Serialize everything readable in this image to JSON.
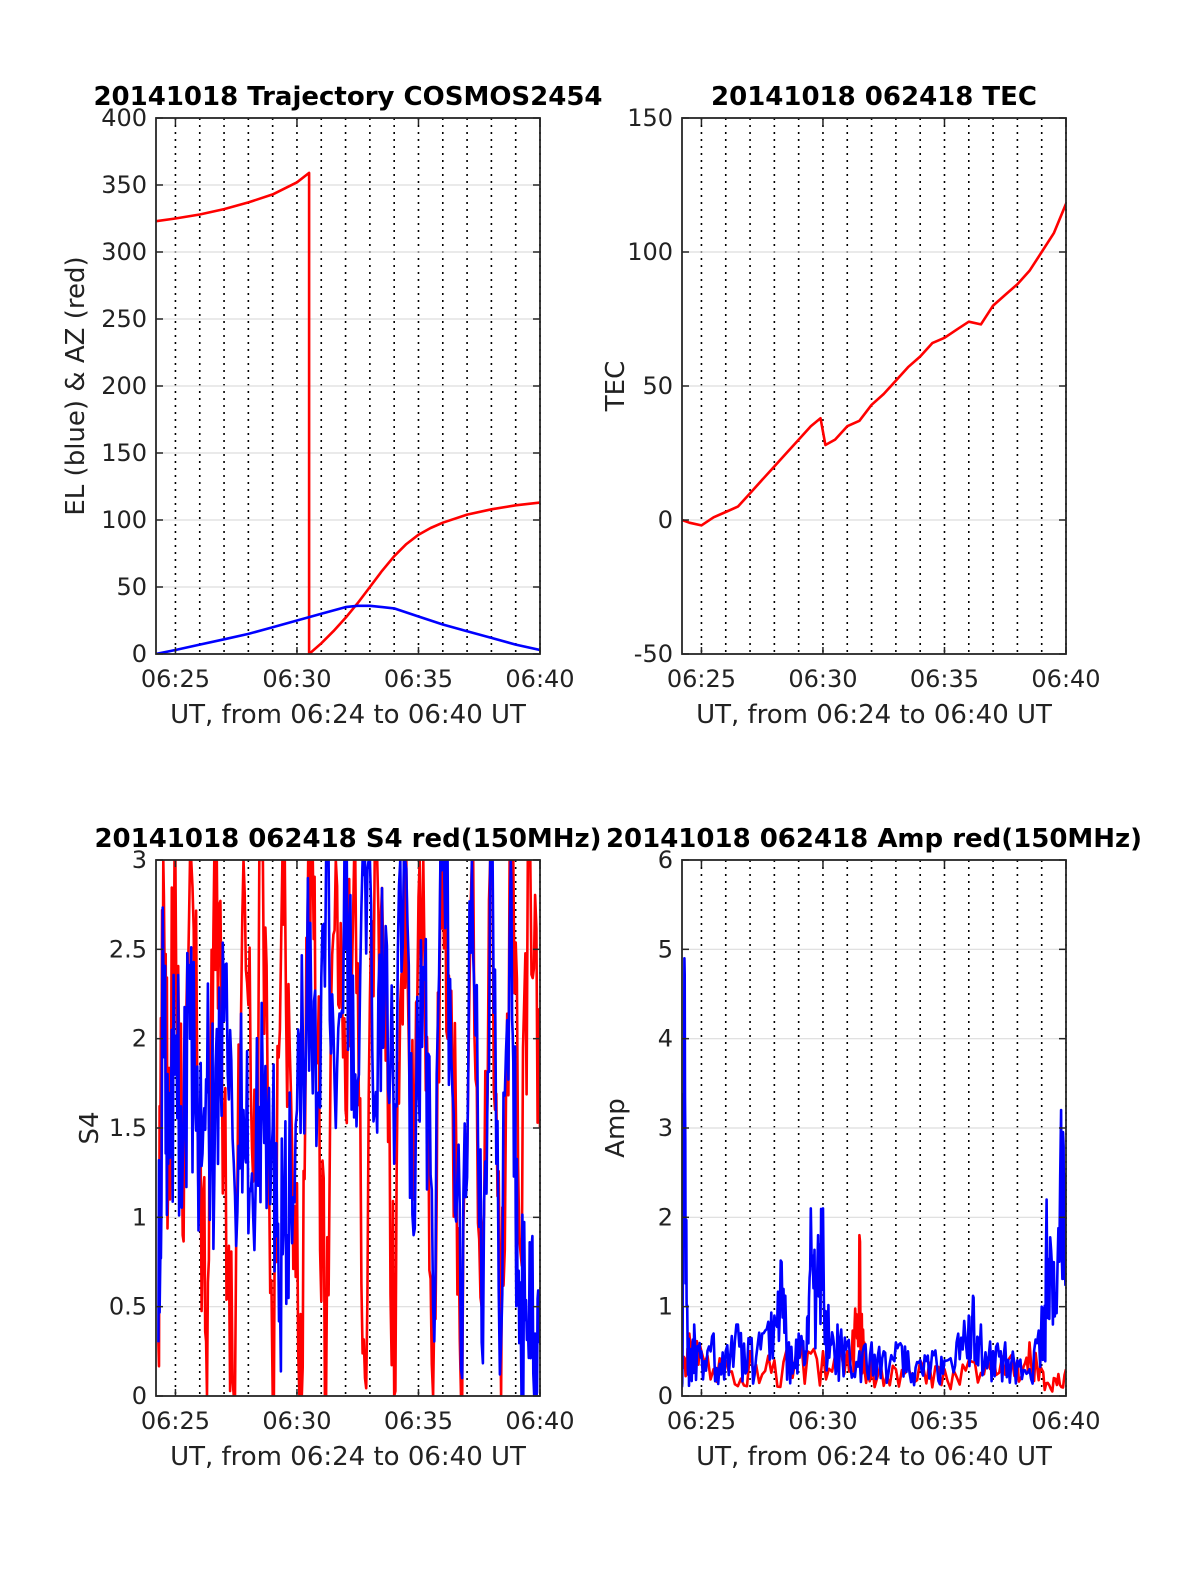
{
  "chart_data": [
    {
      "id": "trajectory",
      "type": "line",
      "title": "20141018 Trajectory COSMOS2454",
      "xlabel": "UT, from 06:24 to 06:40 UT",
      "ylabel": "EL (blue) & AZ (red)",
      "xlim": [
        24.2,
        40
      ],
      "ylim": [
        0,
        400
      ],
      "xticks": [
        25,
        30,
        35,
        40
      ],
      "xtick_labels": [
        "06:25",
        "06:30",
        "06:35",
        "06:40"
      ],
      "yticks": [
        0,
        50,
        100,
        150,
        200,
        250,
        300,
        350,
        400
      ],
      "ytick_labels": [
        "0",
        "50",
        "100",
        "150",
        "200",
        "250",
        "300",
        "350",
        "400"
      ],
      "grid": true,
      "series": [
        {
          "color": "#ff0000",
          "x": [
            24.2,
            25,
            26,
            27,
            28,
            29,
            30,
            30.5,
            30.5,
            31,
            31.5,
            32,
            32.5,
            33,
            33.5,
            34,
            34.5,
            35,
            35.5,
            36,
            37,
            38,
            39,
            40
          ],
          "y": [
            323,
            325,
            328,
            332,
            337,
            343,
            352,
            359,
            0,
            8,
            17,
            27,
            38,
            50,
            62,
            73,
            82,
            89,
            94,
            98,
            104,
            108,
            111,
            113
          ]
        },
        {
          "color": "#0000ff",
          "x": [
            24.2,
            25,
            26,
            27,
            28,
            29,
            30,
            31,
            32,
            32.5,
            33,
            34,
            35,
            36,
            37,
            38,
            39,
            40
          ],
          "y": [
            0,
            3,
            7,
            11,
            15,
            20,
            25,
            30,
            35,
            36,
            36,
            34,
            28,
            22,
            17,
            12,
            7,
            3
          ]
        }
      ]
    },
    {
      "id": "tec",
      "type": "line",
      "title": "20141018 062418 TEC",
      "xlabel": "UT, from 06:24 to 06:40 UT",
      "ylabel": "TEC",
      "xlim": [
        24.2,
        40
      ],
      "ylim": [
        -50,
        150
      ],
      "xticks": [
        25,
        30,
        35,
        40
      ],
      "xtick_labels": [
        "06:25",
        "06:30",
        "06:35",
        "06:40"
      ],
      "yticks": [
        -50,
        0,
        50,
        100,
        150
      ],
      "ytick_labels": [
        "-50",
        "0",
        "50",
        "100",
        "150"
      ],
      "grid": true,
      "series": [
        {
          "color": "#ff0000",
          "x": [
            24.2,
            24.5,
            25,
            25.5,
            26,
            26.5,
            27,
            27.5,
            28,
            28.5,
            29,
            29.5,
            29.9,
            30.1,
            30.5,
            31,
            31.5,
            32,
            32.5,
            33,
            33.5,
            34,
            34.5,
            35,
            35.5,
            36,
            36.5,
            37,
            37.5,
            38,
            38.5,
            39,
            39.5,
            40
          ],
          "y": [
            0,
            -1,
            -2,
            1,
            3,
            5,
            10,
            15,
            20,
            25,
            30,
            35,
            38,
            28,
            30,
            35,
            37,
            43,
            47,
            52,
            57,
            61,
            66,
            68,
            71,
            74,
            73,
            80,
            84,
            88,
            93,
            100,
            107,
            118
          ]
        }
      ]
    },
    {
      "id": "s4",
      "type": "line",
      "title": "20141018 062418 S4 red(150MHz)",
      "xlabel": "UT, from 06:24 to 06:40 UT",
      "ylabel": "S4",
      "xlim": [
        24.2,
        40
      ],
      "ylim": [
        0,
        3
      ],
      "xticks": [
        25,
        30,
        35,
        40
      ],
      "xtick_labels": [
        "06:25",
        "06:30",
        "06:35",
        "06:40"
      ],
      "yticks": [
        0,
        0.5,
        1,
        1.5,
        2,
        2.5,
        3
      ],
      "ytick_labels": [
        "0",
        "0.5",
        "1",
        "1.5",
        "2",
        "2.5",
        "3"
      ],
      "grid": true,
      "series": [
        {
          "color": "#ff0000",
          "x": [
            24.3,
            24.5,
            24.7,
            25,
            25.3,
            25.6,
            26,
            26.3,
            26.6,
            27,
            27.4,
            27.8,
            28.2,
            28.6,
            29,
            29.4,
            29.8,
            30.2,
            30.5,
            30.8,
            31.2,
            31.6,
            32,
            32.4,
            32.8,
            33.2,
            33.6,
            34,
            34.4,
            34.8,
            35.2,
            35.6,
            36,
            36.4,
            36.8,
            37.2,
            37.6,
            38,
            38.4,
            38.8,
            39.2,
            39.6,
            40
          ],
          "y": [
            0.3,
            3,
            1.2,
            3,
            0.9,
            3,
            1.3,
            0,
            3,
            1.5,
            0,
            3,
            1.2,
            3,
            0,
            3,
            1.4,
            0,
            3,
            2.0,
            0,
            3,
            1.6,
            3,
            0.1,
            3,
            2.4,
            0,
            3,
            1.1,
            3,
            0,
            3,
            1.8,
            0,
            3,
            0.5,
            3,
            0,
            3,
            0.8,
            3,
            1.5
          ]
        },
        {
          "color": "#0000ff",
          "x": [
            24.3,
            24.5,
            24.7,
            25,
            25.3,
            25.6,
            26,
            26.3,
            26.6,
            27,
            27.4,
            27.8,
            28.2,
            28.6,
            29,
            29.3,
            29.6,
            30,
            30.4,
            30.8,
            31.2,
            31.6,
            32,
            32.4,
            32.8,
            33.2,
            33.6,
            34,
            34.4,
            34.8,
            35.2,
            35.6,
            36,
            36.4,
            36.8,
            37.2,
            37.6,
            38,
            38.4,
            38.8,
            39,
            39.2,
            39.5,
            39.8,
            40
          ],
          "y": [
            0.3,
            2.4,
            1.3,
            1.8,
            1.3,
            2.0,
            1.4,
            1.7,
            1.2,
            2.1,
            1.3,
            1.6,
            1.0,
            1.7,
            1.5,
            0.6,
            0.9,
            1.6,
            2.2,
            1.4,
            3,
            1.5,
            2.5,
            1.8,
            3,
            1.6,
            2.2,
            1.3,
            3,
            0.9,
            2.4,
            0.5,
            3,
            1.7,
            0.1,
            3,
            0.3,
            3,
            0.3,
            3,
            1.0,
            0.5,
            0.4,
            0.35,
            0.3
          ]
        }
      ]
    },
    {
      "id": "amp",
      "type": "line",
      "title": "20141018 062418 Amp red(150MHz)",
      "xlabel": "UT, from 06:24 to 06:40 UT",
      "ylabel": "Amp",
      "xlim": [
        24.2,
        40
      ],
      "ylim": [
        0,
        6
      ],
      "xticks": [
        25,
        30,
        35,
        40
      ],
      "xtick_labels": [
        "06:25",
        "06:30",
        "06:35",
        "06:40"
      ],
      "yticks": [
        0,
        1,
        2,
        3,
        4,
        5,
        6
      ],
      "ytick_labels": [
        "0",
        "1",
        "2",
        "3",
        "4",
        "5",
        "6"
      ],
      "grid": true,
      "series": [
        {
          "color": "#ff0000",
          "x": [
            24.2,
            24.5,
            25,
            26,
            27,
            28,
            29,
            30,
            31,
            31.3,
            31.5,
            31.7,
            32,
            33,
            34,
            35,
            36,
            37,
            38,
            38.5,
            39,
            39.5,
            40
          ],
          "y": [
            0.3,
            0.7,
            0.5,
            0.4,
            0.5,
            0.4,
            0.6,
            0.5,
            0.5,
            0.8,
            1.8,
            0.6,
            0.4,
            0.3,
            0.4,
            0.3,
            0.4,
            0.5,
            0.4,
            0.6,
            0.3,
            0.2,
            0.3
          ]
        },
        {
          "color": "#0000ff",
          "x": [
            24.2,
            24.3,
            24.4,
            24.5,
            24.7,
            25,
            25.5,
            26,
            26.5,
            27,
            27.5,
            28,
            28.3,
            28.6,
            29,
            29.3,
            29.5,
            29.8,
            30,
            30.3,
            30.6,
            31,
            31.5,
            32,
            32.5,
            33,
            33.5,
            34,
            34.5,
            35,
            35.5,
            36,
            36.2,
            36.5,
            37,
            37.5,
            38,
            38.5,
            39,
            39.2,
            39.5,
            39.8,
            40
          ],
          "y": [
            0.1,
            4.9,
            1.0,
            0.5,
            0.8,
            0.5,
            0.7,
            0.5,
            0.8,
            0.6,
            0.7,
            0.9,
            1.5,
            0.6,
            0.7,
            0.5,
            2.1,
            1.8,
            2.1,
            0.6,
            0.8,
            0.6,
            0.5,
            0.6,
            0.5,
            0.6,
            0.5,
            0.4,
            0.5,
            0.4,
            0.6,
            0.9,
            1.1,
            0.8,
            0.5,
            0.6,
            0.4,
            0.3,
            1.0,
            2.2,
            1.5,
            3.2,
            2.5
          ]
        }
      ]
    }
  ]
}
